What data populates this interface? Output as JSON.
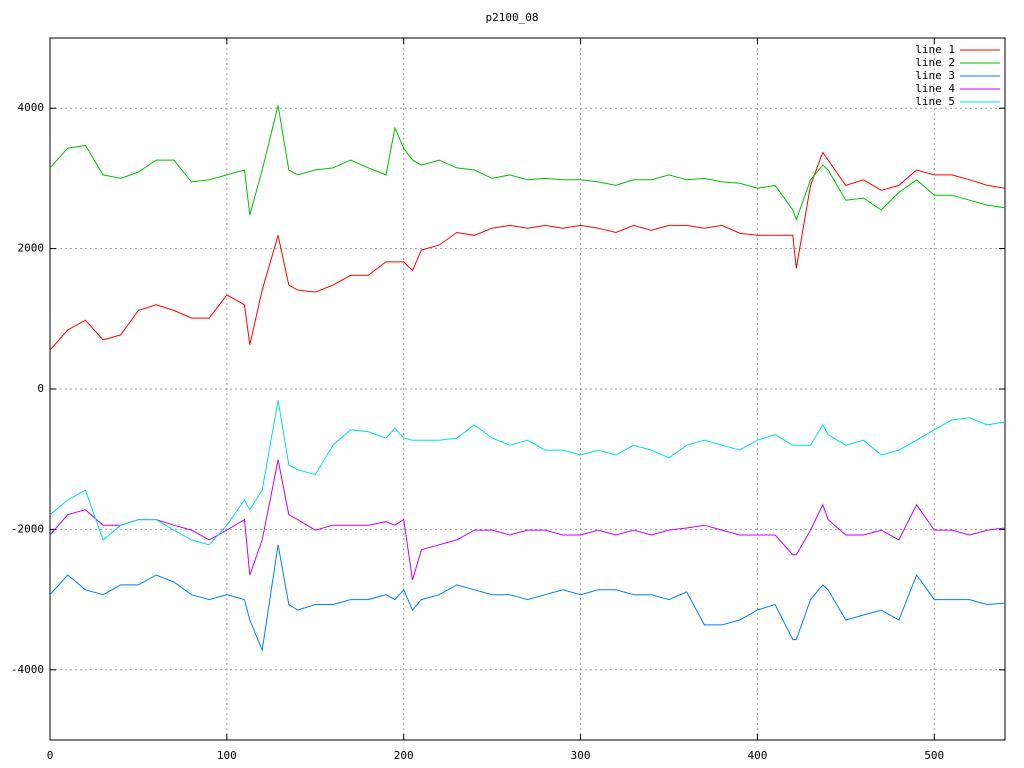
{
  "chart_data": {
    "type": "line",
    "title": "p2100_08",
    "x": [
      0,
      10,
      20,
      30,
      40,
      50,
      60,
      70,
      80,
      90,
      100,
      110,
      113,
      120,
      129,
      135,
      140,
      150,
      160,
      170,
      180,
      190,
      195,
      200,
      205,
      210,
      220,
      230,
      240,
      250,
      260,
      270,
      280,
      290,
      300,
      310,
      320,
      330,
      340,
      350,
      360,
      370,
      380,
      390,
      400,
      410,
      420,
      422,
      430,
      437,
      440,
      450,
      460,
      470,
      480,
      490,
      500,
      510,
      520,
      530,
      540
    ],
    "series": [
      {
        "name": "line 1",
        "color": "#ff0000",
        "values": [
          555,
          840,
          980,
          700,
          770,
          1120,
          1200,
          1120,
          1010,
          1010,
          1340,
          1200,
          630,
          1410,
          2190,
          1480,
          1410,
          1380,
          1480,
          1620,
          1620,
          1810,
          1810,
          1810,
          1690,
          1980,
          2050,
          2230,
          2190,
          2290,
          2330,
          2290,
          2330,
          2290,
          2330,
          2290,
          2230,
          2330,
          2260,
          2330,
          2330,
          2290,
          2330,
          2220,
          2190,
          2190,
          2190,
          1720,
          2900,
          3370,
          3260,
          2900,
          2980,
          2830,
          2900,
          3120,
          3050,
          3050,
          2980,
          2900,
          2860
        ]
      },
      {
        "name": "line 2",
        "color": "#00c000",
        "values": [
          3150,
          3430,
          3470,
          3050,
          3000,
          3090,
          3260,
          3260,
          2950,
          2980,
          3050,
          3120,
          2480,
          3120,
          4040,
          3120,
          3050,
          3120,
          3150,
          3260,
          3150,
          3050,
          3720,
          3430,
          3260,
          3190,
          3260,
          3150,
          3120,
          3000,
          3050,
          2980,
          3000,
          2980,
          2980,
          2950,
          2900,
          2980,
          2980,
          3050,
          2980,
          3000,
          2950,
          2930,
          2860,
          2900,
          2550,
          2410,
          2980,
          3190,
          3120,
          2690,
          2720,
          2550,
          2800,
          2980,
          2760,
          2760,
          2690,
          2620,
          2580
        ]
      },
      {
        "name": "line 3",
        "color": "#0080ff",
        "values": [
          -2930,
          -2650,
          -2860,
          -2930,
          -2790,
          -2790,
          -2650,
          -2750,
          -2930,
          -3000,
          -2930,
          -3000,
          -3290,
          -3720,
          -2220,
          -3070,
          -3150,
          -3070,
          -3070,
          -3000,
          -3000,
          -2930,
          -3000,
          -2860,
          -3150,
          -3000,
          -2930,
          -2790,
          -2860,
          -2930,
          -2930,
          -3000,
          -2930,
          -2860,
          -2930,
          -2860,
          -2860,
          -2930,
          -2930,
          -3000,
          -2890,
          -3360,
          -3360,
          -3290,
          -3150,
          -3070,
          -3570,
          -3570,
          -3000,
          -2790,
          -2860,
          -3290,
          -3220,
          -3150,
          -3290,
          -2650,
          -3000,
          -3000,
          -3000,
          -3070,
          -3050
        ]
      },
      {
        "name": "line 4",
        "color": "#c000ff",
        "values": [
          -2080,
          -1790,
          -1720,
          -1940,
          -1940,
          -1860,
          -1860,
          -1940,
          -2010,
          -2150,
          -2010,
          -1860,
          -2650,
          -2150,
          -1010,
          -1790,
          -1860,
          -2010,
          -1940,
          -1940,
          -1940,
          -1890,
          -1940,
          -1860,
          -2720,
          -2290,
          -2220,
          -2150,
          -2010,
          -2010,
          -2080,
          -2010,
          -2010,
          -2080,
          -2080,
          -2010,
          -2080,
          -2010,
          -2080,
          -2010,
          -1980,
          -1940,
          -2010,
          -2080,
          -2080,
          -2080,
          -2360,
          -2360,
          -2010,
          -1650,
          -1860,
          -2080,
          -2080,
          -2010,
          -2150,
          -1650,
          -2010,
          -2010,
          -2080,
          -2010,
          -1980
        ]
      },
      {
        "name": "line 5",
        "color": "#00e0e0",
        "values": [
          -1790,
          -1580,
          -1440,
          -2150,
          -1940,
          -1860,
          -1860,
          -2010,
          -2150,
          -2220,
          -1940,
          -1580,
          -1720,
          -1440,
          -160,
          -1080,
          -1150,
          -1220,
          -800,
          -580,
          -610,
          -700,
          -560,
          -700,
          -730,
          -730,
          -730,
          -700,
          -510,
          -700,
          -800,
          -730,
          -870,
          -870,
          -940,
          -870,
          -940,
          -800,
          -870,
          -980,
          -800,
          -730,
          -800,
          -870,
          -730,
          -650,
          -800,
          -800,
          -800,
          -510,
          -650,
          -800,
          -730,
          -940,
          -870,
          -730,
          -580,
          -440,
          -410,
          -510,
          -470
        ]
      }
    ],
    "xlim": [
      0,
      540
    ],
    "ylim": [
      -5000,
      5000
    ],
    "xticks": [
      0,
      100,
      200,
      300,
      400,
      500
    ],
    "yticks": [
      -4000,
      -2000,
      0,
      2000,
      4000
    ],
    "grid": true,
    "legend": "top-right"
  }
}
